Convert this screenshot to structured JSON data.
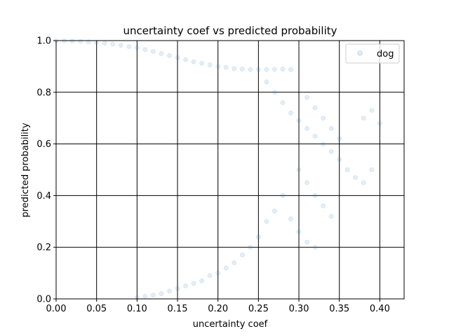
{
  "chart_data": {
    "type": "scatter",
    "title": "uncertainty coef vs predicted probability",
    "xlabel": "uncertainty coef",
    "ylabel": "predicted probability",
    "xlim": [
      0.0,
      0.43
    ],
    "ylim": [
      0.0,
      1.0
    ],
    "xticks": [
      "0.00",
      "0.05",
      "0.10",
      "0.15",
      "0.20",
      "0.25",
      "0.30",
      "0.35",
      "0.40"
    ],
    "yticks": [
      "0.0",
      "0.2",
      "0.4",
      "0.6",
      "0.8",
      "1.0"
    ],
    "grid": true,
    "legend_position": "top-right",
    "series": [
      {
        "name": "dog",
        "color": "#1f77b4",
        "marker_alpha": 0.12,
        "points": [
          [
            0.0,
            0.999
          ],
          [
            0.01,
            0.999
          ],
          [
            0.02,
            0.998
          ],
          [
            0.03,
            0.997
          ],
          [
            0.04,
            0.995
          ],
          [
            0.05,
            0.993
          ],
          [
            0.06,
            0.99
          ],
          [
            0.07,
            0.986
          ],
          [
            0.08,
            0.982
          ],
          [
            0.09,
            0.977
          ],
          [
            0.1,
            0.972
          ],
          [
            0.11,
            0.965
          ],
          [
            0.12,
            0.958
          ],
          [
            0.13,
            0.95
          ],
          [
            0.14,
            0.942
          ],
          [
            0.15,
            0.934
          ],
          [
            0.16,
            0.926
          ],
          [
            0.17,
            0.918
          ],
          [
            0.18,
            0.912
          ],
          [
            0.19,
            0.906
          ],
          [
            0.2,
            0.9
          ],
          [
            0.21,
            0.896
          ],
          [
            0.22,
            0.892
          ],
          [
            0.23,
            0.89
          ],
          [
            0.24,
            0.888
          ],
          [
            0.25,
            0.888
          ],
          [
            0.26,
            0.888
          ],
          [
            0.27,
            0.889
          ],
          [
            0.28,
            0.89
          ],
          [
            0.29,
            0.888
          ],
          [
            0.26,
            0.84
          ],
          [
            0.27,
            0.8
          ],
          [
            0.28,
            0.76
          ],
          [
            0.29,
            0.72
          ],
          [
            0.3,
            0.69
          ],
          [
            0.31,
            0.66
          ],
          [
            0.32,
            0.63
          ],
          [
            0.33,
            0.6
          ],
          [
            0.34,
            0.57
          ],
          [
            0.35,
            0.54
          ],
          [
            0.36,
            0.5
          ],
          [
            0.37,
            0.47
          ],
          [
            0.38,
            0.45
          ],
          [
            0.39,
            0.5
          ],
          [
            0.4,
            0.68
          ],
          [
            0.31,
            0.78
          ],
          [
            0.32,
            0.74
          ],
          [
            0.33,
            0.7
          ],
          [
            0.34,
            0.66
          ],
          [
            0.35,
            0.62
          ],
          [
            0.3,
            0.5
          ],
          [
            0.31,
            0.45
          ],
          [
            0.32,
            0.4
          ],
          [
            0.33,
            0.36
          ],
          [
            0.34,
            0.32
          ],
          [
            0.28,
            0.4
          ],
          [
            0.27,
            0.34
          ],
          [
            0.26,
            0.3
          ],
          [
            0.25,
            0.24
          ],
          [
            0.24,
            0.2
          ],
          [
            0.23,
            0.17
          ],
          [
            0.22,
            0.14
          ],
          [
            0.21,
            0.12
          ],
          [
            0.2,
            0.1
          ],
          [
            0.19,
            0.09
          ],
          [
            0.18,
            0.07
          ],
          [
            0.17,
            0.06
          ],
          [
            0.16,
            0.05
          ],
          [
            0.15,
            0.04
          ],
          [
            0.14,
            0.03
          ],
          [
            0.13,
            0.02
          ],
          [
            0.12,
            0.015
          ],
          [
            0.11,
            0.01
          ],
          [
            0.1,
            0.005
          ],
          [
            0.29,
            0.31
          ],
          [
            0.3,
            0.26
          ],
          [
            0.31,
            0.22
          ],
          [
            0.32,
            0.2
          ],
          [
            0.38,
            0.7
          ],
          [
            0.39,
            0.73
          ]
        ]
      }
    ]
  }
}
